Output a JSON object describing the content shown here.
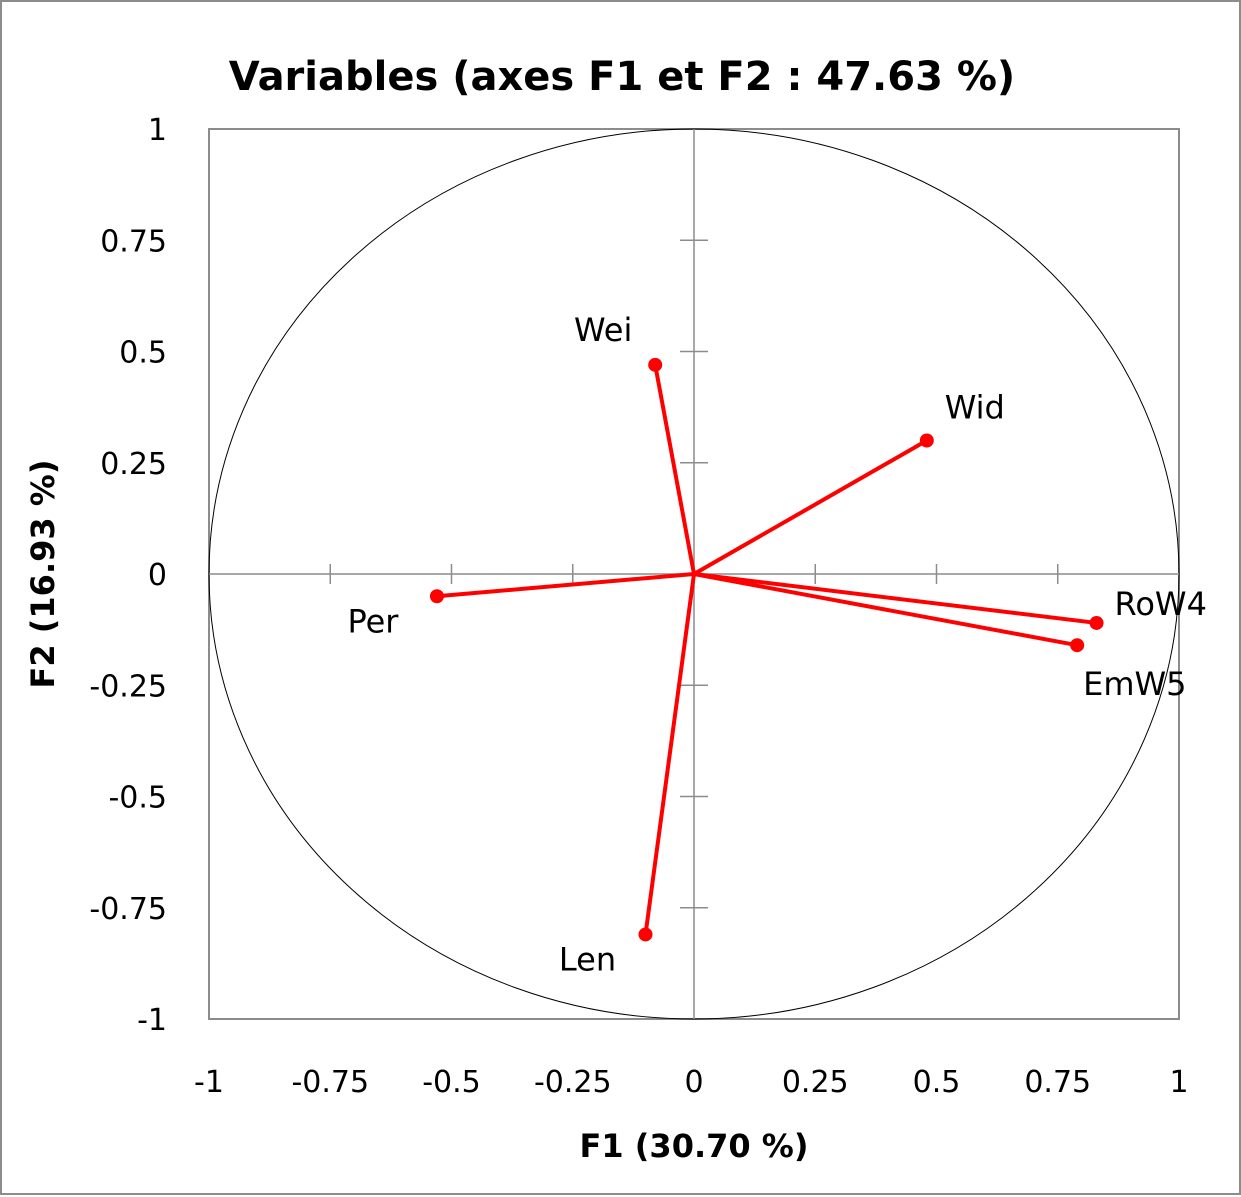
{
  "chart_data": {
    "type": "scatter",
    "subtype": "pca-correlation-circle",
    "title": "Variables (axes F1 et F2 : 47.63 %)",
    "xlabel": "F1 (30.70 %)",
    "ylabel": "F2 (16.93 %)",
    "xlim": [
      -1,
      1
    ],
    "ylim": [
      -1,
      1
    ],
    "xticks": [
      -1,
      -0.75,
      -0.5,
      -0.25,
      0,
      0.25,
      0.5,
      0.75,
      1
    ],
    "yticks": [
      -1,
      -0.75,
      -0.5,
      -0.25,
      0,
      0.25,
      0.5,
      0.75,
      1
    ],
    "xtick_labels": [
      "-1",
      "-0.75",
      "-0.5",
      "-0.25",
      "0",
      "0.25",
      "0.5",
      "0.75",
      "1"
    ],
    "ytick_labels": [
      "-1",
      "-0.75",
      "-0.5",
      "-0.25",
      "0",
      "0.25",
      "0.5",
      "0.75",
      "1"
    ],
    "unit_circle": true,
    "grid": false,
    "vector_color": "#ff0000",
    "points": [
      {
        "label": "Wei",
        "x": -0.08,
        "y": 0.47
      },
      {
        "label": "Wid",
        "x": 0.48,
        "y": 0.3
      },
      {
        "label": "Per",
        "x": -0.53,
        "y": -0.05
      },
      {
        "label": "RoW4",
        "x": 0.83,
        "y": -0.11
      },
      {
        "label": "EmW5",
        "x": 0.79,
        "y": -0.16
      },
      {
        "label": "Len",
        "x": -0.1,
        "y": -0.81
      }
    ]
  }
}
